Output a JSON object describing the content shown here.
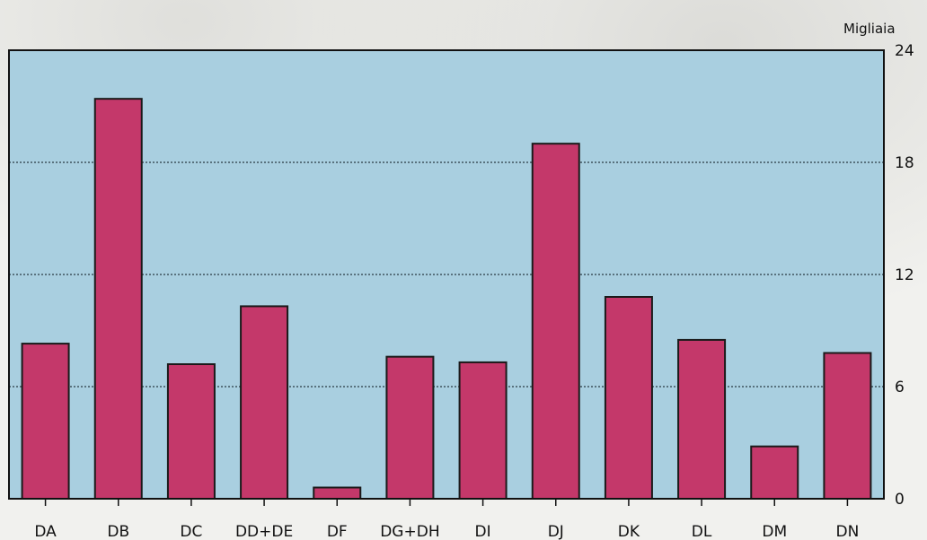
{
  "chart_data": {
    "type": "bar",
    "title": "",
    "xlabel": "",
    "ylabel": "Migliaia",
    "categories": [
      "DA",
      "DB",
      "DC",
      "DD+DE",
      "DF",
      "DG+DH",
      "DI",
      "DJ",
      "DK",
      "DL",
      "DM",
      "DN"
    ],
    "values": [
      8.3,
      21.4,
      7.2,
      10.3,
      0.6,
      7.6,
      7.3,
      19.0,
      10.8,
      8.5,
      2.8,
      7.8
    ],
    "ylim": [
      0,
      24
    ],
    "yticks": [
      "0",
      "6",
      "12",
      "18",
      "24"
    ],
    "grid": true,
    "y_axis_side": "right",
    "colors": {
      "bar_fill": "#c4386a",
      "bar_edge": "#1a1a1a",
      "plot_background": "#a9cfe0",
      "grid": "#2a3a44"
    }
  }
}
